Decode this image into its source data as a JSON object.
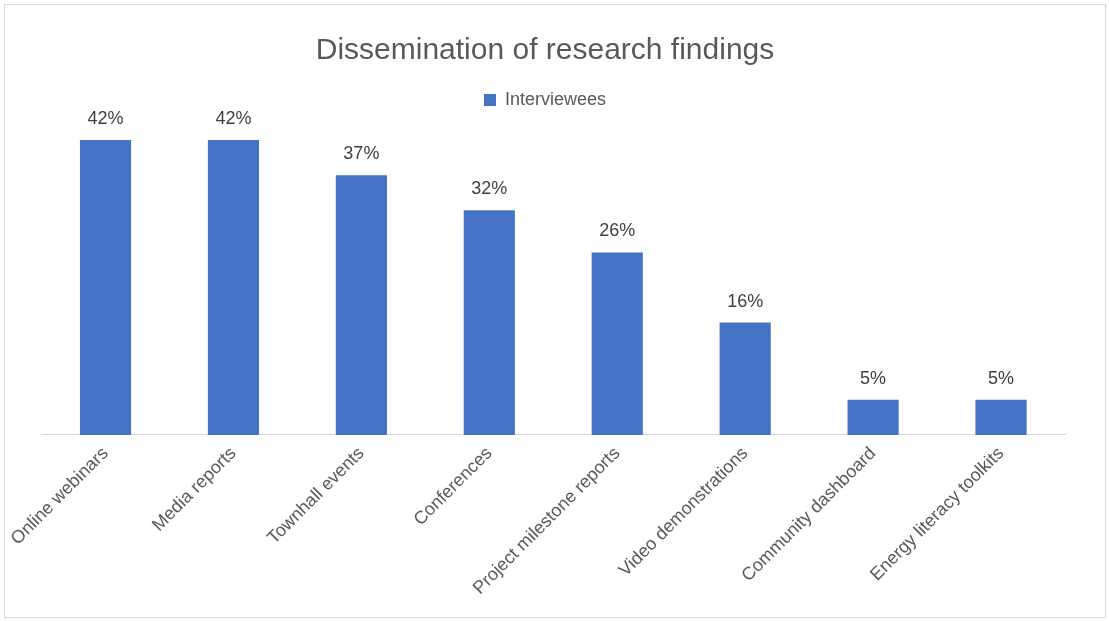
{
  "chart_data": {
    "type": "bar",
    "title": "Dissemination of research findings",
    "categories": [
      "Online webinars",
      "Media reports",
      "Townhall events",
      "Conferences",
      "Project milestone reports",
      "Video demonstrations",
      "Community dashboard",
      "Energy literacy toolkits"
    ],
    "series": [
      {
        "name": "Interviewees",
        "color": "#4472c4",
        "values": [
          42,
          42,
          37,
          32,
          26,
          16,
          5,
          5
        ],
        "value_labels": [
          "42%",
          "42%",
          "37%",
          "32%",
          "26%",
          "16%",
          "5%",
          "5%"
        ]
      }
    ],
    "legend": "top",
    "grid": false
  }
}
